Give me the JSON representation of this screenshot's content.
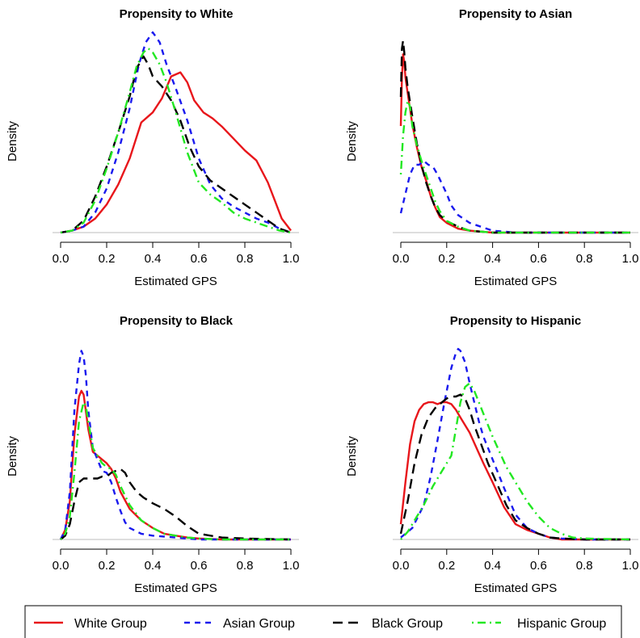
{
  "chart_data": [
    {
      "type": "line",
      "title": "Propensity to White",
      "xlabel": "Estimated GPS",
      "ylabel": "Density",
      "xlim": [
        0,
        1
      ],
      "xticks": [
        "0.0",
        "0.2",
        "0.4",
        "0.6",
        "0.8",
        "1.0"
      ],
      "y_ticks_shown": false,
      "series": [
        {
          "name": "White Group",
          "x": [
            0.0,
            0.05,
            0.1,
            0.15,
            0.2,
            0.25,
            0.3,
            0.35,
            0.38,
            0.4,
            0.44,
            0.48,
            0.52,
            0.55,
            0.58,
            0.62,
            0.66,
            0.7,
            0.75,
            0.8,
            0.85,
            0.9,
            0.93,
            0.96,
            1.0
          ],
          "y": [
            0.0,
            0.01,
            0.03,
            0.07,
            0.14,
            0.24,
            0.37,
            0.55,
            0.58,
            0.6,
            0.67,
            0.78,
            0.8,
            0.75,
            0.66,
            0.6,
            0.57,
            0.53,
            0.47,
            0.41,
            0.36,
            0.25,
            0.16,
            0.07,
            0.01
          ]
        },
        {
          "name": "Asian Group",
          "x": [
            0.0,
            0.05,
            0.1,
            0.15,
            0.2,
            0.25,
            0.3,
            0.34,
            0.37,
            0.4,
            0.43,
            0.46,
            0.5,
            0.55,
            0.6,
            0.65,
            0.7,
            0.75,
            0.8,
            0.85,
            0.9,
            0.95,
            1.0
          ],
          "y": [
            0.0,
            0.01,
            0.03,
            0.1,
            0.22,
            0.4,
            0.62,
            0.84,
            0.95,
            1.0,
            0.95,
            0.84,
            0.72,
            0.56,
            0.37,
            0.24,
            0.17,
            0.13,
            0.1,
            0.07,
            0.05,
            0.02,
            0.0
          ]
        },
        {
          "name": "Black Group",
          "x": [
            0.0,
            0.05,
            0.1,
            0.15,
            0.2,
            0.25,
            0.3,
            0.33,
            0.36,
            0.38,
            0.4,
            0.44,
            0.48,
            0.52,
            0.56,
            0.6,
            0.65,
            0.7,
            0.75,
            0.8,
            0.85,
            0.9,
            0.95,
            1.0
          ],
          "y": [
            0.0,
            0.01,
            0.06,
            0.18,
            0.33,
            0.5,
            0.68,
            0.82,
            0.88,
            0.84,
            0.78,
            0.73,
            0.66,
            0.56,
            0.43,
            0.33,
            0.26,
            0.22,
            0.18,
            0.14,
            0.1,
            0.06,
            0.02,
            0.0
          ]
        },
        {
          "name": "Hispanic Group",
          "x": [
            0.0,
            0.05,
            0.1,
            0.15,
            0.2,
            0.25,
            0.3,
            0.33,
            0.36,
            0.38,
            0.4,
            0.43,
            0.46,
            0.5,
            0.55,
            0.6,
            0.65,
            0.7,
            0.75,
            0.8,
            0.85,
            0.9,
            0.95,
            1.0
          ],
          "y": [
            0.0,
            0.01,
            0.05,
            0.16,
            0.32,
            0.5,
            0.7,
            0.83,
            0.9,
            0.92,
            0.9,
            0.84,
            0.75,
            0.6,
            0.4,
            0.25,
            0.19,
            0.15,
            0.1,
            0.07,
            0.05,
            0.03,
            0.01,
            0.0
          ]
        }
      ]
    },
    {
      "type": "line",
      "title": "Propensity to Asian",
      "xlabel": "Estimated GPS",
      "ylabel": "Density",
      "xlim": [
        0,
        1
      ],
      "xticks": [
        "0.0",
        "0.2",
        "0.4",
        "0.6",
        "0.8",
        "1.0"
      ],
      "y_ticks_shown": false,
      "series": [
        {
          "name": "White Group",
          "x": [
            0.0,
            0.005,
            0.01,
            0.015,
            0.02,
            0.03,
            0.05,
            0.07,
            0.09,
            0.11,
            0.13,
            0.15,
            0.17,
            0.2,
            0.25,
            0.3,
            0.4,
            0.6,
            1.0
          ],
          "y": [
            0.55,
            0.8,
            0.92,
            0.88,
            0.8,
            0.72,
            0.56,
            0.44,
            0.34,
            0.27,
            0.19,
            0.13,
            0.08,
            0.05,
            0.02,
            0.01,
            0.0,
            0.0,
            0.0
          ]
        },
        {
          "name": "Asian Group",
          "x": [
            0.0,
            0.02,
            0.04,
            0.06,
            0.08,
            0.1,
            0.12,
            0.14,
            0.16,
            0.18,
            0.2,
            0.22,
            0.25,
            0.3,
            0.35,
            0.4,
            0.5,
            0.6,
            1.0
          ],
          "y": [
            0.1,
            0.2,
            0.3,
            0.35,
            0.35,
            0.37,
            0.35,
            0.34,
            0.3,
            0.25,
            0.2,
            0.14,
            0.09,
            0.05,
            0.03,
            0.01,
            0.0,
            0.0,
            0.0
          ]
        },
        {
          "name": "Black Group",
          "x": [
            0.0,
            0.005,
            0.01,
            0.015,
            0.02,
            0.03,
            0.05,
            0.07,
            0.09,
            0.11,
            0.13,
            0.15,
            0.17,
            0.2,
            0.25,
            0.3,
            0.4,
            0.6,
            1.0
          ],
          "y": [
            0.7,
            0.95,
            0.99,
            0.93,
            0.85,
            0.75,
            0.6,
            0.46,
            0.35,
            0.26,
            0.19,
            0.13,
            0.09,
            0.06,
            0.03,
            0.01,
            0.0,
            0.0,
            0.0
          ]
        },
        {
          "name": "Hispanic Group",
          "x": [
            0.0,
            0.01,
            0.02,
            0.03,
            0.04,
            0.05,
            0.07,
            0.09,
            0.11,
            0.13,
            0.15,
            0.17,
            0.2,
            0.25,
            0.3,
            0.4,
            0.6,
            1.0
          ],
          "y": [
            0.3,
            0.5,
            0.62,
            0.68,
            0.65,
            0.55,
            0.45,
            0.37,
            0.3,
            0.23,
            0.16,
            0.11,
            0.06,
            0.03,
            0.01,
            0.0,
            0.0,
            0.0
          ]
        }
      ]
    },
    {
      "type": "line",
      "title": "Propensity to Black",
      "xlabel": "Estimated GPS",
      "ylabel": "Density",
      "xlim": [
        0,
        1
      ],
      "xticks": [
        "0.0",
        "0.2",
        "0.4",
        "0.6",
        "0.8",
        "1.0"
      ],
      "y_ticks_shown": false,
      "series": [
        {
          "name": "White Group",
          "x": [
            0.0,
            0.02,
            0.04,
            0.06,
            0.08,
            0.09,
            0.1,
            0.12,
            0.14,
            0.16,
            0.18,
            0.2,
            0.22,
            0.24,
            0.26,
            0.3,
            0.35,
            0.4,
            0.45,
            0.5,
            0.55,
            0.6,
            0.7,
            0.8,
            1.0
          ],
          "y": [
            0.0,
            0.05,
            0.2,
            0.55,
            0.75,
            0.78,
            0.76,
            0.58,
            0.46,
            0.44,
            0.42,
            0.4,
            0.37,
            0.32,
            0.25,
            0.16,
            0.1,
            0.06,
            0.03,
            0.02,
            0.01,
            0.005,
            0.0,
            0.0,
            0.0
          ]
        },
        {
          "name": "Asian Group",
          "x": [
            0.0,
            0.02,
            0.04,
            0.06,
            0.08,
            0.09,
            0.1,
            0.11,
            0.12,
            0.14,
            0.16,
            0.18,
            0.2,
            0.22,
            0.24,
            0.26,
            0.28,
            0.3,
            0.35,
            0.4,
            0.5,
            0.6,
            0.8,
            1.0
          ],
          "y": [
            0.0,
            0.05,
            0.25,
            0.68,
            0.92,
            0.99,
            0.96,
            0.86,
            0.68,
            0.48,
            0.42,
            0.36,
            0.35,
            0.3,
            0.22,
            0.15,
            0.09,
            0.06,
            0.03,
            0.02,
            0.01,
            0.0,
            0.0,
            0.0
          ]
        },
        {
          "name": "Black Group",
          "x": [
            0.0,
            0.02,
            0.04,
            0.06,
            0.08,
            0.1,
            0.12,
            0.14,
            0.16,
            0.18,
            0.2,
            0.22,
            0.24,
            0.26,
            0.28,
            0.3,
            0.33,
            0.36,
            0.4,
            0.45,
            0.5,
            0.55,
            0.6,
            0.7,
            0.8,
            1.0
          ],
          "y": [
            0.0,
            0.02,
            0.08,
            0.2,
            0.3,
            0.32,
            0.32,
            0.32,
            0.32,
            0.33,
            0.33,
            0.35,
            0.36,
            0.37,
            0.35,
            0.3,
            0.25,
            0.22,
            0.19,
            0.16,
            0.12,
            0.07,
            0.03,
            0.01,
            0.005,
            0.0
          ]
        },
        {
          "name": "Hispanic Group",
          "x": [
            0.0,
            0.02,
            0.04,
            0.06,
            0.08,
            0.1,
            0.11,
            0.12,
            0.14,
            0.16,
            0.18,
            0.2,
            0.22,
            0.24,
            0.26,
            0.3,
            0.35,
            0.4,
            0.45,
            0.5,
            0.55,
            0.6,
            0.7,
            0.8,
            1.0
          ],
          "y": [
            0.0,
            0.03,
            0.12,
            0.35,
            0.62,
            0.72,
            0.7,
            0.62,
            0.48,
            0.44,
            0.4,
            0.38,
            0.37,
            0.34,
            0.28,
            0.18,
            0.1,
            0.06,
            0.03,
            0.02,
            0.01,
            0.005,
            0.0,
            0.0,
            0.0
          ]
        }
      ]
    },
    {
      "type": "line",
      "title": "Propensity to Hispanic",
      "xlabel": "Estimated GPS",
      "ylabel": "Density",
      "xlim": [
        0,
        1
      ],
      "xticks": [
        "0.0",
        "0.2",
        "0.4",
        "0.6",
        "0.8",
        "1.0"
      ],
      "y_ticks_shown": false,
      "series": [
        {
          "name": "White Group",
          "x": [
            0.0,
            0.02,
            0.04,
            0.06,
            0.08,
            0.1,
            0.12,
            0.14,
            0.16,
            0.18,
            0.2,
            0.22,
            0.24,
            0.26,
            0.28,
            0.3,
            0.33,
            0.36,
            0.4,
            0.45,
            0.5,
            0.55,
            0.6,
            0.65,
            0.7,
            0.8,
            1.0
          ],
          "y": [
            0.08,
            0.3,
            0.5,
            0.62,
            0.68,
            0.71,
            0.72,
            0.72,
            0.71,
            0.72,
            0.72,
            0.71,
            0.68,
            0.64,
            0.6,
            0.56,
            0.48,
            0.4,
            0.3,
            0.17,
            0.08,
            0.05,
            0.03,
            0.01,
            0.0,
            0.0,
            0.0
          ]
        },
        {
          "name": "Asian Group",
          "x": [
            0.0,
            0.05,
            0.1,
            0.13,
            0.16,
            0.19,
            0.22,
            0.24,
            0.25,
            0.26,
            0.28,
            0.3,
            0.32,
            0.34,
            0.36,
            0.38,
            0.4,
            0.42,
            0.45,
            0.5,
            0.55,
            0.6,
            0.65,
            0.7,
            0.8,
            1.0
          ],
          "y": [
            0.01,
            0.06,
            0.18,
            0.33,
            0.52,
            0.72,
            0.9,
            0.98,
            1.0,
            0.99,
            0.93,
            0.82,
            0.72,
            0.62,
            0.54,
            0.48,
            0.42,
            0.36,
            0.27,
            0.13,
            0.06,
            0.03,
            0.01,
            0.005,
            0.0,
            0.0
          ]
        },
        {
          "name": "Black Group",
          "x": [
            0.0,
            0.03,
            0.06,
            0.09,
            0.12,
            0.15,
            0.18,
            0.2,
            0.22,
            0.24,
            0.26,
            0.28,
            0.3,
            0.32,
            0.35,
            0.38,
            0.42,
            0.46,
            0.5,
            0.55,
            0.6,
            0.65,
            0.7,
            0.8,
            1.0
          ],
          "y": [
            0.03,
            0.2,
            0.4,
            0.55,
            0.64,
            0.69,
            0.72,
            0.74,
            0.75,
            0.75,
            0.76,
            0.74,
            0.68,
            0.6,
            0.5,
            0.4,
            0.29,
            0.18,
            0.1,
            0.06,
            0.03,
            0.01,
            0.005,
            0.0,
            0.0
          ]
        },
        {
          "name": "Hispanic Group",
          "x": [
            0.0,
            0.03,
            0.06,
            0.1,
            0.14,
            0.18,
            0.22,
            0.24,
            0.26,
            0.28,
            0.3,
            0.32,
            0.34,
            0.36,
            0.38,
            0.4,
            0.43,
            0.46,
            0.5,
            0.55,
            0.6,
            0.65,
            0.7,
            0.75,
            0.8,
            1.0
          ],
          "y": [
            0.0,
            0.04,
            0.1,
            0.18,
            0.28,
            0.36,
            0.44,
            0.58,
            0.72,
            0.8,
            0.82,
            0.78,
            0.72,
            0.66,
            0.6,
            0.54,
            0.46,
            0.38,
            0.3,
            0.2,
            0.12,
            0.06,
            0.03,
            0.01,
            0.005,
            0.0
          ]
        }
      ]
    }
  ],
  "legend": {
    "placement": "bottom",
    "items": [
      {
        "label": "White Group",
        "color": "#e8161b",
        "dash": "solid"
      },
      {
        "label": "Asian Group",
        "color": "#1a1aee",
        "dash": "dashed"
      },
      {
        "label": "Black Group",
        "color": "#000000",
        "dash": "long-dashed"
      },
      {
        "label": "Hispanic Group",
        "color": "#22e822",
        "dash": "dot-dash"
      }
    ]
  }
}
